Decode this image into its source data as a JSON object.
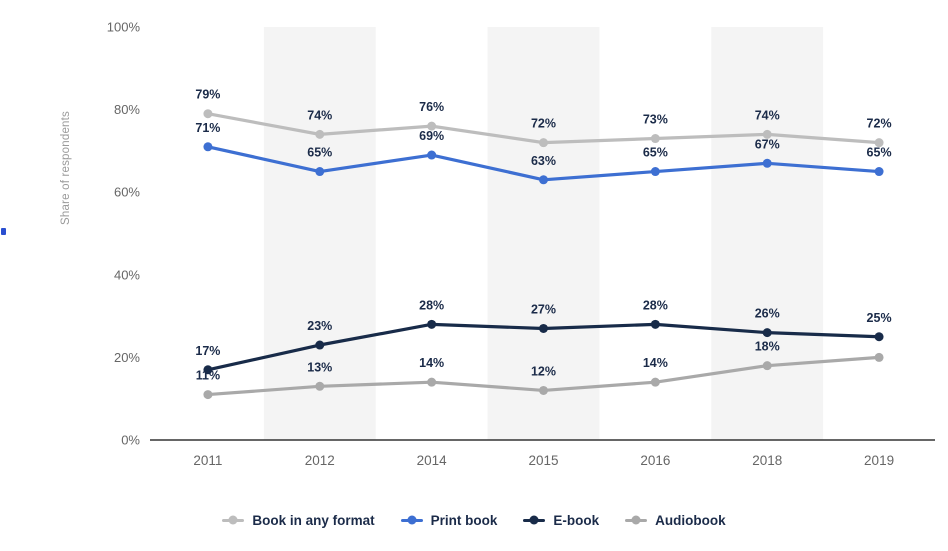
{
  "page": {
    "background": "#ffffff"
  },
  "chart_data": {
    "type": "line",
    "title": "",
    "xlabel": "",
    "ylabel": "Share of respondents",
    "x_categories": [
      "2011",
      "2012",
      "2014",
      "2015",
      "2016",
      "2018",
      "2019"
    ],
    "y_ticks": [
      "0%",
      "20%",
      "40%",
      "60%",
      "80%",
      "100%"
    ],
    "y_tick_values": [
      0,
      20,
      40,
      60,
      80,
      100
    ],
    "ylim": [
      0,
      100
    ],
    "grid": false,
    "legend_position": "bottom",
    "band_color": "#f4f4f4",
    "banded_categories": [
      1,
      3,
      5
    ],
    "axis_color": "#333333",
    "tick_color": "#666666",
    "label_color": "#1b2b49",
    "series": [
      {
        "name": "Book in any format",
        "color": "#bdbdbd",
        "values": [
          79,
          74,
          76,
          72,
          73,
          74,
          72
        ],
        "labels": [
          "79%",
          "74%",
          "76%",
          "72%",
          "73%",
          "74%",
          "72%"
        ]
      },
      {
        "name": "Print book",
        "color": "#3d6fd2",
        "values": [
          71,
          65,
          69,
          63,
          65,
          67,
          65
        ],
        "labels": [
          "71%",
          "65%",
          "69%",
          "63%",
          "65%",
          "67%",
          "65%"
        ]
      },
      {
        "name": "E-book",
        "color": "#182b49",
        "values": [
          17,
          23,
          28,
          27,
          28,
          26,
          25
        ],
        "labels": [
          "17%",
          "23%",
          "28%",
          "27%",
          "28%",
          "26%",
          "25%"
        ]
      },
      {
        "name": "Audiobook",
        "color": "#a9a9a9",
        "values": [
          11,
          13,
          14,
          12,
          14,
          18,
          20
        ],
        "labels": [
          "11%",
          "13%",
          "14%",
          "12%",
          "14%",
          "18%",
          ""
        ]
      }
    ]
  }
}
